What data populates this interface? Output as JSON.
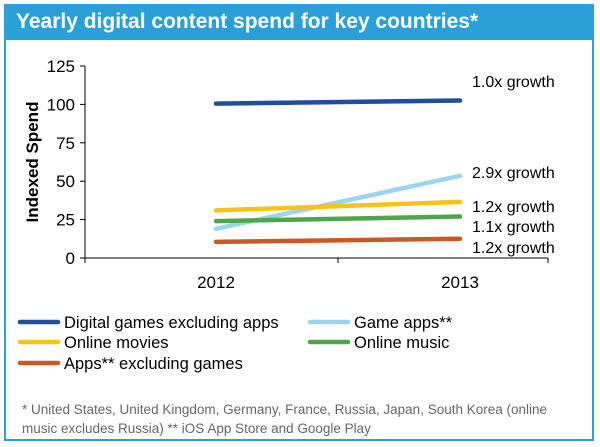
{
  "title": "Yearly digital content spend for key countries*",
  "footnote": "* United States, United Kingdom, Germany, France, Russia, Japan, South Korea (online music excludes Russia) ** iOS App Store and Google Play",
  "colors": {
    "title_bg": "#2a9fd8",
    "digital_games": "#1f4e9c",
    "game_apps": "#99d5ef",
    "online_movies": "#f7c31a",
    "online_music": "#4fa64a",
    "apps_excl_games": "#c85a26"
  },
  "chart_data": {
    "type": "line",
    "title": "Yearly digital content spend for key countries*",
    "xlabel": "",
    "ylabel": "Indexed Spend",
    "x": [
      "2012",
      "2013"
    ],
    "ylim": [
      0,
      125
    ],
    "yticks": [
      0,
      25,
      50,
      75,
      100,
      125
    ],
    "grid": false,
    "legend_position": "bottom",
    "series": [
      {
        "name": "Digital games excluding apps",
        "color": "#1f4e9c",
        "values": [
          100.5,
          102.5
        ],
        "annotation": "1.0x growth"
      },
      {
        "name": "Game apps**",
        "color": "#99d5ef",
        "values": [
          19,
          53.5
        ],
        "annotation": "2.9x growth"
      },
      {
        "name": "Online movies",
        "color": "#f7c31a",
        "values": [
          31,
          36.5
        ],
        "annotation": "1.2x growth"
      },
      {
        "name": "Online music",
        "color": "#4fa64a",
        "values": [
          24,
          27
        ],
        "annotation": "1.1x growth"
      },
      {
        "name": "Apps** excluding games",
        "color": "#c85a26",
        "values": [
          10.5,
          12.5
        ],
        "annotation": "1.2x growth"
      }
    ]
  }
}
